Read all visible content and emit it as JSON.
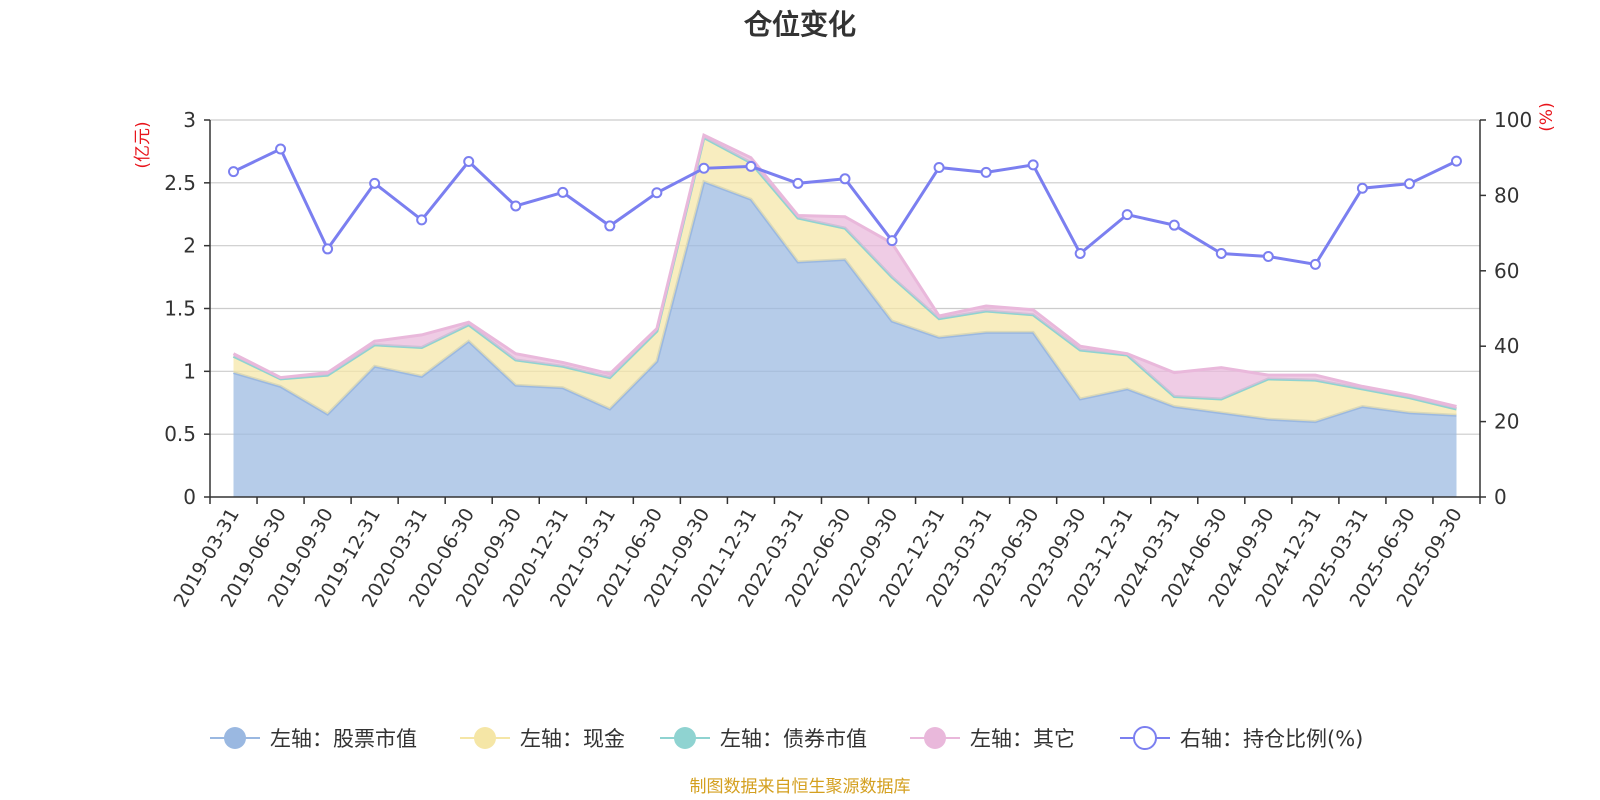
{
  "chart_data": {
    "type": "area",
    "title": "仓位变化",
    "left_axis_label": "(亿元)",
    "right_axis_label": "(%)",
    "left_ylim": [
      0,
      3
    ],
    "right_ylim": [
      0,
      100
    ],
    "left_ticks": [
      0,
      0.5,
      1,
      1.5,
      2,
      2.5,
      3
    ],
    "left_tick_labels": [
      "0",
      "0.5",
      "1",
      "1.5",
      "2",
      "2.5",
      "3"
    ],
    "right_ticks": [
      0,
      20,
      40,
      60,
      80,
      100
    ],
    "right_tick_labels": [
      "0",
      "20",
      "40",
      "60",
      "80",
      "100"
    ],
    "grid": true,
    "legend_position": "bottom",
    "categories": [
      "2019-03-31",
      "2019-06-30",
      "2019-09-30",
      "2019-12-31",
      "2020-03-31",
      "2020-06-30",
      "2020-09-30",
      "2020-12-31",
      "2021-03-31",
      "2021-06-30",
      "2021-09-30",
      "2021-12-31",
      "2022-03-31",
      "2022-06-30",
      "2022-09-30",
      "2022-12-31",
      "2023-03-31",
      "2023-06-30",
      "2023-09-30",
      "2023-12-31",
      "2024-03-31",
      "2024-06-30",
      "2024-09-30",
      "2024-12-31",
      "2025-03-31",
      "2025-06-30",
      "2025-09-30"
    ],
    "series": [
      {
        "name": "左轴：股票市值",
        "axis": "left",
        "kind": "stacked-area",
        "color": "#9ab8e1",
        "values": [
          0.99,
          0.88,
          0.66,
          1.04,
          0.96,
          1.24,
          0.89,
          0.87,
          0.7,
          1.08,
          2.51,
          2.37,
          1.87,
          1.89,
          1.4,
          1.27,
          1.31,
          1.31,
          0.78,
          0.86,
          0.72,
          0.67,
          0.62,
          0.6,
          0.72,
          0.67,
          0.65
        ]
      },
      {
        "name": "左轴：现金",
        "axis": "left",
        "kind": "stacked-area",
        "color": "#f5e6a6",
        "values": [
          0.13,
          0.06,
          0.31,
          0.17,
          0.23,
          0.13,
          0.2,
          0.17,
          0.25,
          0.24,
          0.35,
          0.29,
          0.35,
          0.25,
          0.35,
          0.15,
          0.17,
          0.14,
          0.39,
          0.27,
          0.08,
          0.11,
          0.32,
          0.33,
          0.14,
          0.12,
          0.05
        ]
      },
      {
        "name": "左轴：债券市值",
        "axis": "left",
        "kind": "stacked-area",
        "color": "#8fd3d1",
        "values": [
          0,
          0,
          0,
          0,
          0,
          0,
          0,
          0,
          0,
          0,
          0,
          0,
          0,
          0,
          0,
          0,
          0,
          0,
          0,
          0,
          0,
          0,
          0,
          0,
          0,
          0,
          0
        ]
      },
      {
        "name": "左轴：其它",
        "axis": "left",
        "kind": "stacked-area",
        "color": "#e9b8db",
        "values": [
          0.02,
          0.01,
          0.02,
          0.03,
          0.1,
          0.02,
          0.05,
          0.03,
          0.03,
          0.02,
          0.02,
          0.04,
          0.02,
          0.09,
          0.27,
          0.02,
          0.04,
          0.04,
          0.03,
          0.01,
          0.19,
          0.25,
          0.03,
          0.04,
          0.02,
          0.02,
          0.02
        ]
      },
      {
        "name": "右轴：持仓比例(%)",
        "axis": "right",
        "kind": "line",
        "color": "#7b7ff0",
        "values": [
          86.3,
          92.3,
          65.8,
          83.2,
          73.5,
          89.0,
          77.2,
          80.8,
          71.9,
          80.7,
          87.2,
          87.7,
          83.2,
          84.4,
          68.0,
          87.4,
          86.1,
          88.1,
          64.6,
          74.9,
          72.1,
          64.6,
          63.8,
          61.7,
          81.9,
          83.1,
          89.1
        ]
      }
    ]
  },
  "footer": {
    "source": "制图数据来自恒生聚源数据库"
  },
  "colors": {
    "title": "#333333",
    "axis_label": "#e8141b",
    "axis": "#333333",
    "grid": "#cccccc",
    "source": "#d4a020"
  }
}
